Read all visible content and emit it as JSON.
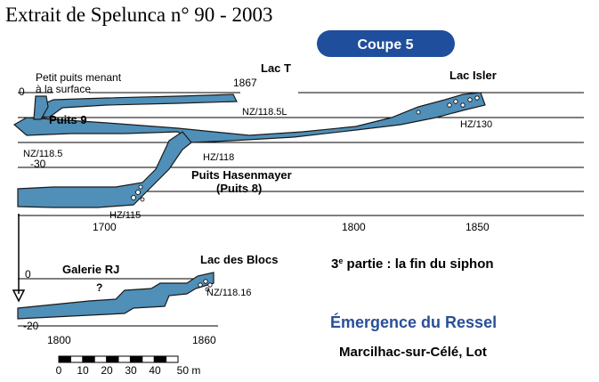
{
  "header": {
    "source_title": "Extrait de Spelunca n° 90 - 2003",
    "badge": "Coupe 5"
  },
  "upper_section": {
    "depth_zero": "0",
    "depth_minus_30": "-30",
    "surface_note_line1": "Petit puits menant",
    "surface_note_line2": "à la surface",
    "lac_t": "Lac T",
    "lac_t_distance": "1867",
    "puits_9": "Puits 9",
    "nz_118_5l": "NZ/118.5L",
    "nz_118_5": "NZ/118.5",
    "hz_118": "HZ/118",
    "puits_hasenmayer": "Puits Hasenmayer",
    "puits_8": "(Puits 8)",
    "hz_115": "HZ/115",
    "lac_isler": "Lac Isler",
    "hz_130": "HZ/130",
    "x_ticks": [
      "1700",
      "1800",
      "1850"
    ]
  },
  "lower_section": {
    "depth_zero": "0",
    "depth_minus_20": "-20",
    "galerie_rj": "Galerie RJ",
    "question_mark": "?",
    "lac_des_blocs": "Lac des Blocs",
    "nz_118_16": "NZ/118.16",
    "x_ticks": [
      "1800",
      "1860"
    ]
  },
  "caption": {
    "partie_number": "3",
    "partie_sup": "e",
    "partie_text": " partie : la fin du siphon",
    "emergence": "Émergence du Ressel",
    "location": "Marcilhac-sur-Célé, Lot"
  },
  "scale_bar": {
    "labels": [
      "0",
      "10",
      "20",
      "30",
      "40",
      "50 m"
    ]
  },
  "colors": {
    "gallery_fill": "#4f8fb8",
    "badge_fill": "#1f4e9c",
    "emergence_text": "#2a4f98",
    "line": "#000000"
  }
}
